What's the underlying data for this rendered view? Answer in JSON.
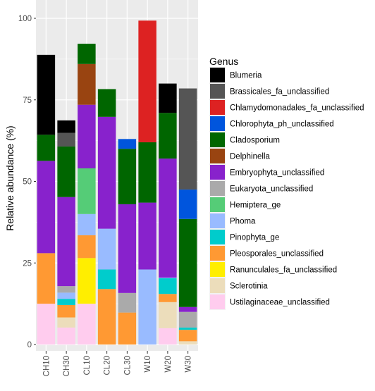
{
  "chart_data": {
    "type": "bar",
    "stacked": true,
    "title": "",
    "xlabel": "",
    "ylabel": "Relative abundance (%)",
    "ylim": [
      0,
      100
    ],
    "yticks": [
      0,
      25,
      50,
      75,
      100
    ],
    "grid": true,
    "legend_position": "right",
    "legend_title": "Genus",
    "categories": [
      "CH10",
      "CH30",
      "CL10",
      "CL20",
      "CL30",
      "W10",
      "W20",
      "W30"
    ],
    "series": [
      {
        "name": "Ustilaginaceae_unclassified",
        "color": "#FFCCEE",
        "values": [
          12.5,
          5.2,
          12.5,
          0,
          0,
          0,
          5.0,
          0
        ]
      },
      {
        "name": "Sclerotinia",
        "color": "#ECDDBB",
        "values": [
          0,
          3.1,
          0,
          0,
          0,
          0,
          8.0,
          1.0
        ]
      },
      {
        "name": "Ranunculales_fa_unclassified",
        "color": "#FFEE00",
        "values": [
          0,
          0,
          14.0,
          0,
          0,
          0,
          0,
          0
        ]
      },
      {
        "name": "Pleosporales_unclassified",
        "color": "#FF9933",
        "values": [
          15.5,
          3.8,
          7.0,
          17.0,
          9.8,
          0,
          2.5,
          3.5
        ]
      },
      {
        "name": "Pinophyta_ge",
        "color": "#00CCCC",
        "values": [
          0,
          1.9,
          0,
          6.0,
          0,
          0,
          4.8,
          0.7
        ]
      },
      {
        "name": "Phoma",
        "color": "#99BBFF",
        "values": [
          0,
          1.9,
          6.5,
          12.5,
          0,
          23.0,
          0.2,
          0
        ]
      },
      {
        "name": "Hemiptera_ge",
        "color": "#55CC77",
        "values": [
          0,
          0,
          14.0,
          0,
          0,
          0,
          0,
          0
        ]
      },
      {
        "name": "Eukaryota_unclassified",
        "color": "#AAAAAA",
        "values": [
          0,
          2.0,
          0,
          0,
          6.0,
          0,
          0,
          4.8
        ]
      },
      {
        "name": "Embryophyta_unclassified",
        "color": "#8822CC",
        "values": [
          28.3,
          27.3,
          19.5,
          34.3,
          27.2,
          20.5,
          36.5,
          1.5
        ]
      },
      {
        "name": "Delphinella",
        "color": "#994411",
        "values": [
          0,
          0,
          12.5,
          0,
          0,
          0,
          0,
          0
        ]
      },
      {
        "name": "Cladosporium",
        "color": "#006600",
        "values": [
          8.0,
          15.5,
          6.2,
          8.5,
          17.0,
          18.5,
          14.0,
          27.0
        ]
      },
      {
        "name": "Chlorophyta_ph_unclassified",
        "color": "#0055DD",
        "values": [
          0,
          0,
          0,
          0,
          3.0,
          0,
          0,
          9.0
        ]
      },
      {
        "name": "Chlamydomonadales_fa_unclassified",
        "color": "#DD2222",
        "values": [
          0,
          0,
          0,
          0,
          0,
          37.3,
          0,
          0
        ]
      },
      {
        "name": "Brassicales_fa_unclassified",
        "color": "#555555",
        "values": [
          0,
          4.2,
          0,
          0,
          0,
          0,
          0,
          31.0
        ]
      },
      {
        "name": "Blumeria",
        "color": "#000000",
        "values": [
          24.5,
          3.8,
          0,
          0,
          0,
          0,
          9.0,
          0
        ]
      }
    ]
  }
}
